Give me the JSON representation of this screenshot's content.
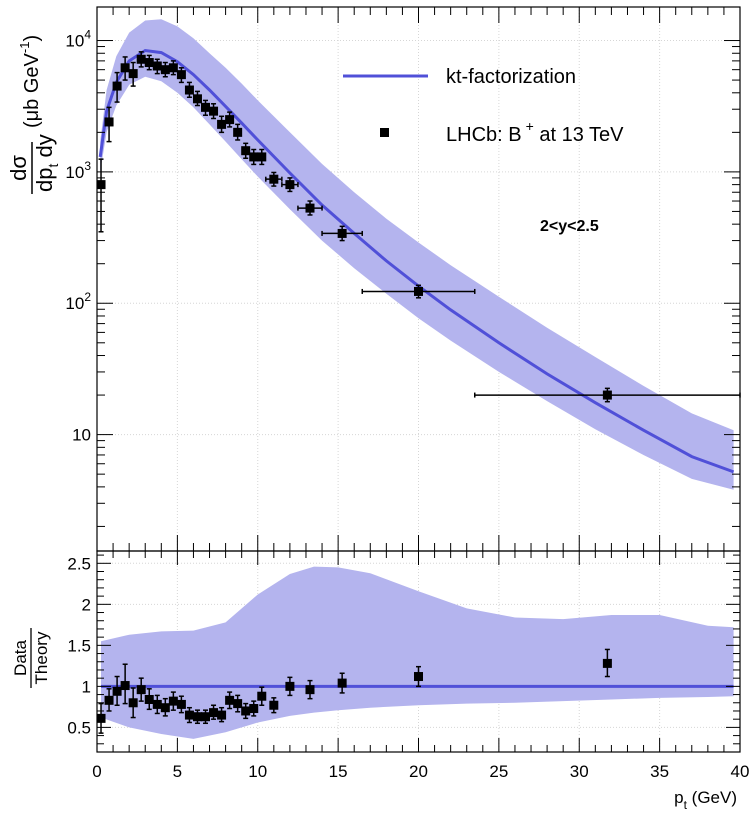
{
  "chart_data": [
    {
      "type": "line",
      "panel": "main",
      "log_y": true,
      "xlim": [
        0,
        40
      ],
      "ylim": [
        1.3,
        18000
      ],
      "ylabel_num": "dσ",
      "ylabel_den_main": "dp",
      "ylabel_den_sub": "t",
      "ylabel_den_tail": " dy",
      "ylabel_units": "(μb GeV",
      "ylabel_units_exp": "-1",
      "ylabel_units_close": ")",
      "y_ticks": [
        {
          "value": 10,
          "base": "10",
          "exp": ""
        },
        {
          "value": 100,
          "base": "10",
          "exp": "2"
        },
        {
          "value": 1000,
          "base": "10",
          "exp": "3"
        },
        {
          "value": 10000,
          "base": "10",
          "exp": "4"
        }
      ],
      "annotation": "2<y<2.5",
      "grid": true,
      "legend_position": "top-right",
      "theory": {
        "name": "kt-factorization",
        "color": "#5050d8",
        "band_color": "#b4b4ee",
        "x": [
          0.2,
          0.6,
          1.2,
          2,
          3,
          4,
          5,
          6,
          7,
          8,
          9,
          10,
          12,
          14,
          16,
          18,
          20,
          22,
          25,
          28,
          31,
          34,
          37,
          39.6
        ],
        "y": [
          1300,
          2900,
          4800,
          7000,
          8400,
          8100,
          6900,
          5500,
          4200,
          3150,
          2350,
          1750,
          980,
          560,
          340,
          210,
          135,
          89,
          50,
          29,
          17.5,
          10.8,
          6.8,
          5.2
        ],
        "band_low": [
          1000,
          2000,
          3200,
          4600,
          5300,
          4900,
          4000,
          3100,
          2300,
          1700,
          1250,
          920,
          520,
          300,
          185,
          118,
          77,
          52,
          30,
          18,
          11,
          7,
          4.6,
          3.8
        ],
        "band_high": [
          1700,
          4200,
          7600,
          11500,
          14200,
          14500,
          12800,
          10400,
          8000,
          6200,
          4700,
          3500,
          2000,
          1150,
          700,
          440,
          290,
          195,
          112,
          65,
          39,
          23.5,
          14.5,
          10.8
        ]
      },
      "data": {
        "name_main": "LHCb: B",
        "name_sup": "+",
        "name_tail": " at 13 TeV",
        "points": [
          {
            "x": 0.25,
            "y": 800,
            "ylo": 350,
            "yhi": 1250
          },
          {
            "x": 0.75,
            "y": 2400,
            "ylo": 1700,
            "yhi": 3100
          },
          {
            "x": 1.25,
            "y": 4500,
            "ylo": 3400,
            "yhi": 5700
          },
          {
            "x": 1.75,
            "y": 6200,
            "ylo": 5000,
            "yhi": 7500
          },
          {
            "x": 2.25,
            "y": 5600,
            "ylo": 4500,
            "yhi": 6800
          },
          {
            "x": 2.75,
            "y": 7200,
            "ylo": 6300,
            "yhi": 8200
          },
          {
            "x": 3.25,
            "y": 6800,
            "ylo": 6000,
            "yhi": 7700
          },
          {
            "x": 3.75,
            "y": 6400,
            "ylo": 5600,
            "yhi": 7200
          },
          {
            "x": 4.25,
            "y": 6000,
            "ylo": 5300,
            "yhi": 6800
          },
          {
            "x": 4.75,
            "y": 6200,
            "ylo": 5500,
            "yhi": 7000
          },
          {
            "x": 5.25,
            "y": 5500,
            "ylo": 4800,
            "yhi": 6200
          },
          {
            "x": 5.75,
            "y": 4200,
            "ylo": 3700,
            "yhi": 4800
          },
          {
            "x": 6.25,
            "y": 3600,
            "ylo": 3200,
            "yhi": 4100
          },
          {
            "x": 6.75,
            "y": 3100,
            "ylo": 2700,
            "yhi": 3500
          },
          {
            "x": 7.25,
            "y": 2900,
            "ylo": 2550,
            "yhi": 3300
          },
          {
            "x": 7.75,
            "y": 2300,
            "ylo": 2000,
            "yhi": 2650
          },
          {
            "x": 8.25,
            "y": 2500,
            "ylo": 2200,
            "yhi": 2850
          },
          {
            "x": 8.75,
            "y": 2000,
            "ylo": 1750,
            "yhi": 2300
          },
          {
            "x": 9.25,
            "y": 1450,
            "ylo": 1270,
            "yhi": 1650
          },
          {
            "x": 9.75,
            "y": 1300,
            "ylo": 1140,
            "yhi": 1480
          },
          {
            "x": 10.25,
            "y": 1300,
            "ylo": 1140,
            "yhi": 1480
          },
          {
            "x": 11.0,
            "y": 880,
            "xlo": 10.5,
            "xhi": 11.5,
            "ylo": 780,
            "yhi": 990
          },
          {
            "x": 12.0,
            "y": 800,
            "xlo": 11.5,
            "xhi": 12.5,
            "ylo": 710,
            "yhi": 900
          },
          {
            "x": 13.25,
            "y": 530,
            "xlo": 12.5,
            "xhi": 14.0,
            "ylo": 470,
            "yhi": 600
          },
          {
            "x": 15.25,
            "y": 340,
            "xlo": 14.0,
            "xhi": 16.5,
            "ylo": 300,
            "yhi": 385
          },
          {
            "x": 20.0,
            "y": 123,
            "xlo": 16.5,
            "xhi": 23.5,
            "ylo": 110,
            "yhi": 137
          },
          {
            "x": 31.75,
            "y": 20,
            "xlo": 23.5,
            "xhi": 40.0,
            "ylo": 17.8,
            "yhi": 22.5
          }
        ]
      }
    },
    {
      "type": "scatter",
      "panel": "ratio",
      "xlim": [
        0,
        40
      ],
      "ylim": [
        0.2,
        2.65
      ],
      "xlabel_main": "p",
      "xlabel_sub": "t",
      "xlabel_tail": " (GeV)",
      "ylabel_num": "Data",
      "ylabel_den": "Theory",
      "x_ticks": [
        {
          "value": 0,
          "label": "0"
        },
        {
          "value": 5,
          "label": "5"
        },
        {
          "value": 10,
          "label": "10"
        },
        {
          "value": 15,
          "label": "15"
        },
        {
          "value": 20,
          "label": "20"
        },
        {
          "value": 25,
          "label": "25"
        },
        {
          "value": 30,
          "label": "30"
        },
        {
          "value": 35,
          "label": "35"
        },
        {
          "value": 40,
          "label": "40"
        }
      ],
      "y_ticks": [
        {
          "value": 0.5,
          "label": "0.5"
        },
        {
          "value": 1,
          "label": "1"
        },
        {
          "value": 1.5,
          "label": "1.5"
        },
        {
          "value": 2,
          "label": "2"
        },
        {
          "value": 2.5,
          "label": "2.5"
        }
      ],
      "grid": true,
      "reference_line": {
        "y": 1,
        "x_start": 0.25,
        "x_end": 39.6
      },
      "band": {
        "x": [
          0.25,
          2,
          4,
          6,
          8,
          10,
          12,
          13.5,
          15,
          17,
          20,
          23,
          26,
          29,
          32,
          35,
          38,
          39.6
        ],
        "low": [
          0.62,
          0.5,
          0.42,
          0.36,
          0.44,
          0.56,
          0.64,
          0.68,
          0.71,
          0.74,
          0.77,
          0.79,
          0.8,
          0.82,
          0.84,
          0.86,
          0.87,
          0.88
        ],
        "high": [
          1.55,
          1.63,
          1.67,
          1.68,
          1.78,
          2.12,
          2.37,
          2.46,
          2.45,
          2.38,
          2.16,
          1.95,
          1.84,
          1.82,
          1.87,
          1.87,
          1.74,
          1.72
        ]
      },
      "points": [
        {
          "x": 0.25,
          "y": 0.61,
          "ylo": 0.43,
          "yhi": 0.79
        },
        {
          "x": 0.75,
          "y": 0.83,
          "ylo": 0.7,
          "yhi": 0.97
        },
        {
          "x": 1.25,
          "y": 0.94,
          "ylo": 0.77,
          "yhi": 1.12
        },
        {
          "x": 1.75,
          "y": 1.01,
          "ylo": 0.79,
          "yhi": 1.27
        },
        {
          "x": 2.25,
          "y": 0.8,
          "ylo": 0.62,
          "yhi": 0.98
        },
        {
          "x": 2.75,
          "y": 0.96,
          "ylo": 0.82,
          "yhi": 1.1
        },
        {
          "x": 3.25,
          "y": 0.84,
          "ylo": 0.72,
          "yhi": 0.97
        },
        {
          "x": 3.75,
          "y": 0.78,
          "ylo": 0.67,
          "yhi": 0.89
        },
        {
          "x": 4.25,
          "y": 0.74,
          "ylo": 0.64,
          "yhi": 0.85
        },
        {
          "x": 4.75,
          "y": 0.82,
          "ylo": 0.71,
          "yhi": 0.93
        },
        {
          "x": 5.25,
          "y": 0.78,
          "ylo": 0.68,
          "yhi": 0.88
        },
        {
          "x": 5.75,
          "y": 0.65,
          "ylo": 0.56,
          "yhi": 0.74
        },
        {
          "x": 6.25,
          "y": 0.63,
          "ylo": 0.55,
          "yhi": 0.71
        },
        {
          "x": 6.75,
          "y": 0.63,
          "ylo": 0.55,
          "yhi": 0.71
        },
        {
          "x": 7.25,
          "y": 0.68,
          "ylo": 0.6,
          "yhi": 0.77
        },
        {
          "x": 7.75,
          "y": 0.65,
          "ylo": 0.57,
          "yhi": 0.74
        },
        {
          "x": 8.25,
          "y": 0.83,
          "ylo": 0.73,
          "yhi": 0.93
        },
        {
          "x": 8.75,
          "y": 0.79,
          "ylo": 0.69,
          "yhi": 0.89
        },
        {
          "x": 9.25,
          "y": 0.7,
          "ylo": 0.61,
          "yhi": 0.79
        },
        {
          "x": 9.75,
          "y": 0.73,
          "ylo": 0.64,
          "yhi": 0.82
        },
        {
          "x": 10.25,
          "y": 0.88,
          "ylo": 0.77,
          "yhi": 0.99
        },
        {
          "x": 11.0,
          "y": 0.77,
          "ylo": 0.68,
          "yhi": 0.86
        },
        {
          "x": 12.0,
          "y": 1.0,
          "ylo": 0.89,
          "yhi": 1.11
        },
        {
          "x": 13.25,
          "y": 0.96,
          "ylo": 0.85,
          "yhi": 1.07
        },
        {
          "x": 15.25,
          "y": 1.04,
          "ylo": 0.92,
          "yhi": 1.16
        },
        {
          "x": 20.0,
          "y": 1.12,
          "ylo": 1.0,
          "yhi": 1.24
        },
        {
          "x": 31.75,
          "y": 1.28,
          "ylo": 1.12,
          "yhi": 1.45
        }
      ]
    }
  ]
}
